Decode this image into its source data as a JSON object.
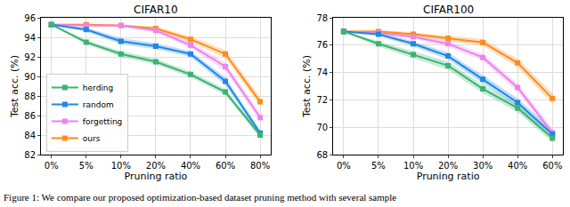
{
  "chart_data": [
    {
      "type": "line",
      "title": "CIFAR10",
      "x_label": "Pruning ratio",
      "y_label": "Test acc. (%)",
      "categories": [
        "0%",
        "5%",
        "10%",
        "20%",
        "40%",
        "60%",
        "80%"
      ],
      "ylim": [
        82,
        96
      ],
      "yticks": [
        82,
        84,
        86,
        88,
        90,
        92,
        94,
        96
      ],
      "grid": true,
      "legend": "lower left",
      "series": [
        {
          "name": "ours",
          "color": "#ff8c1a",
          "marker": "square",
          "values": [
            95.3,
            95.3,
            95.2,
            94.9,
            93.8,
            92.3,
            87.4
          ],
          "std": [
            0.05,
            0.1,
            0.1,
            0.2,
            0.3,
            0.4,
            0.5
          ]
        },
        {
          "name": "forgetting",
          "color": "#ee82ee",
          "marker": "square",
          "values": [
            95.3,
            95.2,
            95.2,
            94.7,
            93.2,
            91.0,
            85.8
          ],
          "std": [
            0.05,
            0.1,
            0.1,
            0.2,
            0.3,
            0.4,
            0.4
          ]
        },
        {
          "name": "random",
          "color": "#1e88e5",
          "marker": "square",
          "values": [
            95.3,
            94.8,
            93.6,
            93.1,
            92.3,
            89.5,
            84.2
          ],
          "std": [
            0.05,
            0.2,
            0.3,
            0.3,
            0.3,
            0.4,
            0.3
          ]
        },
        {
          "name": "herding",
          "color": "#3cb371",
          "marker": "square",
          "values": [
            95.3,
            93.5,
            92.3,
            91.5,
            90.2,
            88.4,
            84.0
          ],
          "std": [
            0.05,
            0.2,
            0.3,
            0.3,
            0.3,
            0.3,
            0.3
          ]
        }
      ]
    },
    {
      "type": "line",
      "title": "CIFAR100",
      "x_label": "Pruning ratio",
      "y_label": "Test acc. (%)",
      "categories": [
        "0%",
        "5%",
        "10%",
        "20%",
        "30%",
        "40%",
        "60%"
      ],
      "ylim": [
        68,
        78
      ],
      "yticks": [
        68,
        70,
        72,
        74,
        76,
        78
      ],
      "grid": true,
      "series": [
        {
          "name": "ours",
          "color": "#ff8c1a",
          "marker": "square",
          "values": [
            77.0,
            77.0,
            76.8,
            76.5,
            76.2,
            74.7,
            72.1
          ],
          "std": [
            0.05,
            0.1,
            0.15,
            0.2,
            0.25,
            0.3,
            0.4
          ]
        },
        {
          "name": "forgetting",
          "color": "#ee82ee",
          "marker": "square",
          "values": [
            77.0,
            76.9,
            76.6,
            76.1,
            75.1,
            72.9,
            69.6
          ],
          "std": [
            0.05,
            0.1,
            0.15,
            0.2,
            0.25,
            0.3,
            0.3
          ]
        },
        {
          "name": "random",
          "color": "#1e88e5",
          "marker": "square",
          "values": [
            77.0,
            76.8,
            76.1,
            75.2,
            73.5,
            71.8,
            69.5
          ],
          "std": [
            0.05,
            0.15,
            0.2,
            0.25,
            0.3,
            0.3,
            0.3
          ]
        },
        {
          "name": "herding",
          "color": "#3cb371",
          "marker": "square",
          "values": [
            77.0,
            76.1,
            75.3,
            74.5,
            72.8,
            71.4,
            69.2
          ],
          "std": [
            0.05,
            0.2,
            0.25,
            0.3,
            0.3,
            0.3,
            0.3
          ]
        }
      ]
    }
  ],
  "caption": "Figure 1: We compare our proposed optimization-based dataset pruning method with several sample"
}
